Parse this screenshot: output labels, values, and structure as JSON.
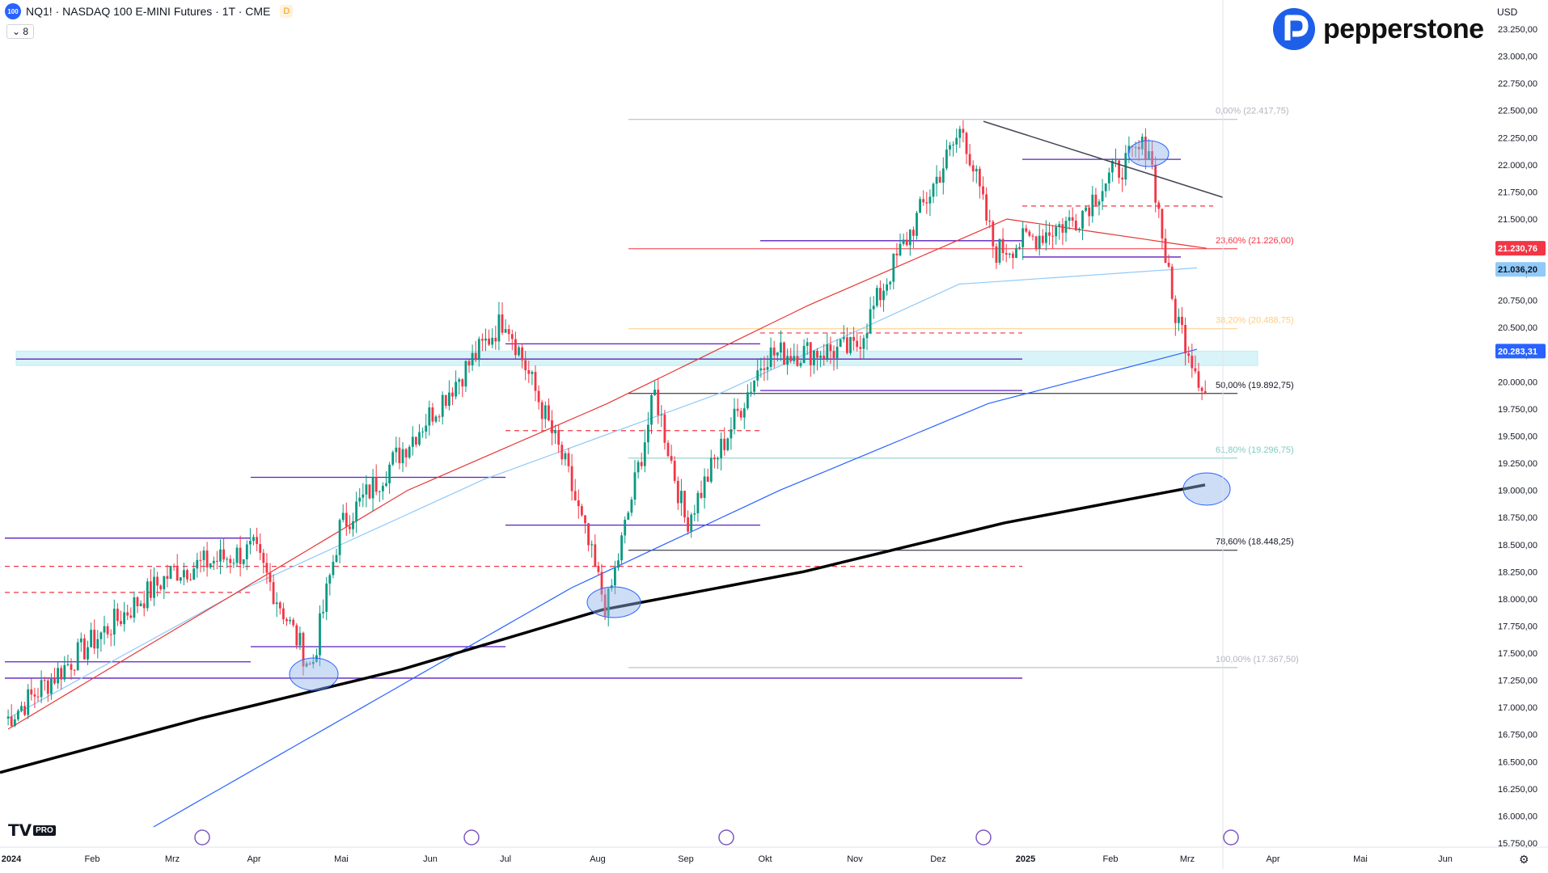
{
  "header": {
    "symbol_badge": "100",
    "title": "NQ1! · NASDAQ 100 E-MINI Futures · 1T · CME",
    "delay_badge": "D",
    "indicator_toggle": "8"
  },
  "branding": {
    "logo_text": "pepperstone",
    "platform_badge": "PRO"
  },
  "currency": "USD",
  "colors": {
    "up": "#089981",
    "down": "#f23645",
    "bg": "#ffffff",
    "ma200": "#000000",
    "ma100": "#2962ff",
    "ma50": "#90caf9",
    "ma20": "#e53935",
    "fib": "#b2b5be",
    "fib_23": "#f23645",
    "fib_38": "#ffcc80",
    "fib_618": "#80cbc4",
    "level": "#5b1fbf",
    "zone": "#b2ebf2",
    "circle": "#90b4e8"
  },
  "chart_data": {
    "type": "candlestick",
    "title": "NQ1! · NASDAQ 100 E-MINI Futures · 1T · CME",
    "ylim": [
      15750,
      23500
    ],
    "y_ticks": [
      "15.750,00",
      "16.000,00",
      "16.250,00",
      "16.500,00",
      "16.750,00",
      "17.000,00",
      "17.250,00",
      "17.500,00",
      "17.750,00",
      "18.000,00",
      "18.250,00",
      "18.500,00",
      "18.750,00",
      "19.000,00",
      "19.250,00",
      "19.500,00",
      "19.750,00",
      "20.000,00",
      "20.250,00",
      "20.500,00",
      "20.750,00",
      "21.000,00",
      "21.250,00",
      "21.500,00",
      "21.750,00",
      "22.000,00",
      "22.250,00",
      "22.500,00",
      "22.750,00",
      "23.000,00",
      "23.250,00"
    ],
    "x_labels": [
      "2024",
      "Feb",
      "Mrz",
      "Apr",
      "Mai",
      "Jun",
      "Jul",
      "Aug",
      "Sep",
      "Okt",
      "Nov",
      "Dez",
      "2025",
      "Feb",
      "Mrz",
      "Apr",
      "Mai",
      "Jun"
    ],
    "price_labels": [
      {
        "text": "21.230,76",
        "value": 21230.76,
        "color": "#f23645"
      },
      {
        "text": "21.036,20",
        "value": 21036.2,
        "color": "#90caf9"
      },
      {
        "text": "20.283,31",
        "value": 20283.31,
        "color": "#2962ff"
      }
    ],
    "fib_levels": [
      {
        "label": "0,00% (22.417,75)",
        "value": 22417.75
      },
      {
        "label": "23,60% (21.226,00)",
        "value": 21226.0
      },
      {
        "label": "38,20% (20.488,75)",
        "value": 20488.75
      },
      {
        "label": "50,00% (19.892,75)",
        "value": 19892.75
      },
      {
        "label": "61,80% (19.296,75)",
        "value": 19296.75
      },
      {
        "label": "78,60% (18.448,25)",
        "value": 18448.25
      },
      {
        "label": "100,00% (17.367,50)",
        "value": 17367.5
      }
    ],
    "anchors": [
      {
        "month": "Jan",
        "close": 16900
      },
      {
        "month": "Feb",
        "close": 17600
      },
      {
        "month": "Mrz",
        "close": 18250
      },
      {
        "month": "Apr",
        "close": 18450
      },
      {
        "month": "Apr-late",
        "close": 17350
      },
      {
        "month": "Mai",
        "close": 18650
      },
      {
        "month": "Jun",
        "close": 19700
      },
      {
        "month": "Jul",
        "close": 20600
      },
      {
        "month": "Jul-late",
        "close": 19200
      },
      {
        "month": "Aug",
        "close": 17900
      },
      {
        "month": "Aug-late",
        "close": 19900
      },
      {
        "month": "Sep",
        "close": 18700
      },
      {
        "month": "Okt",
        "close": 20250
      },
      {
        "month": "Nov",
        "close": 20300
      },
      {
        "month": "Nov-late",
        "close": 21000
      },
      {
        "month": "Dez",
        "close": 22350
      },
      {
        "month": "Dez-late",
        "close": 21200
      },
      {
        "month": "2025",
        "close": 21300
      },
      {
        "month": "Jan-late",
        "close": 21500
      },
      {
        "month": "Feb",
        "close": 21900
      },
      {
        "month": "Feb-mid",
        "close": 22200
      },
      {
        "month": "Feb-late",
        "close": 20700
      },
      {
        "month": "Mrz",
        "close": 19900
      }
    ],
    "ma200": [
      16400,
      16900,
      17350,
      17900,
      18250,
      18700,
      19050
    ],
    "ma100": [
      15900,
      17000,
      18100,
      19000,
      19800,
      20300
    ],
    "ma50": [
      16900,
      18100,
      19100,
      19900,
      20900,
      21050
    ],
    "ma20": [
      16800,
      17900,
      19000,
      19800,
      20700,
      21500,
      21230
    ]
  }
}
